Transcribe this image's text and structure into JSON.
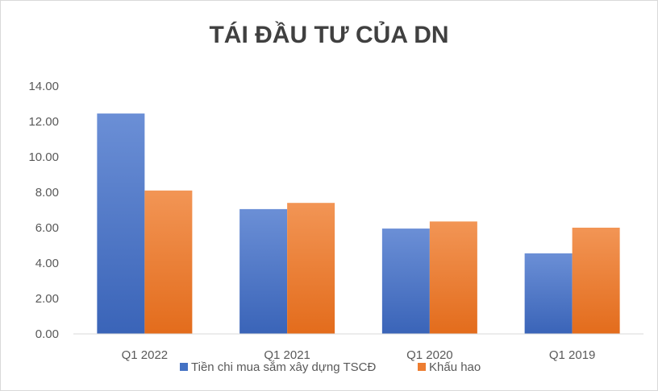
{
  "chart_data": {
    "type": "bar",
    "title": "TÁI ĐẦU TƯ CỦA DN",
    "xlabel": "",
    "ylabel": "",
    "categories": [
      "Q1 2022",
      "Q1 2021",
      "Q1 2020",
      "Q1 2019"
    ],
    "y_ticks": [
      "0.00",
      "2.00",
      "4.00",
      "6.00",
      "8.00",
      "10.00",
      "12.00",
      "14.00"
    ],
    "ylim": [
      0,
      14
    ],
    "grid": false,
    "legend_position": "bottom",
    "series": [
      {
        "name": "Tiền chi mua sắm xây dựng TSCĐ",
        "values": [
          12.45,
          7.05,
          5.95,
          4.55
        ],
        "color": "#4472c4"
      },
      {
        "name": "Khấu hao",
        "values": [
          8.1,
          7.4,
          6.35,
          6.0
        ],
        "color": "#ed7d31"
      }
    ]
  }
}
